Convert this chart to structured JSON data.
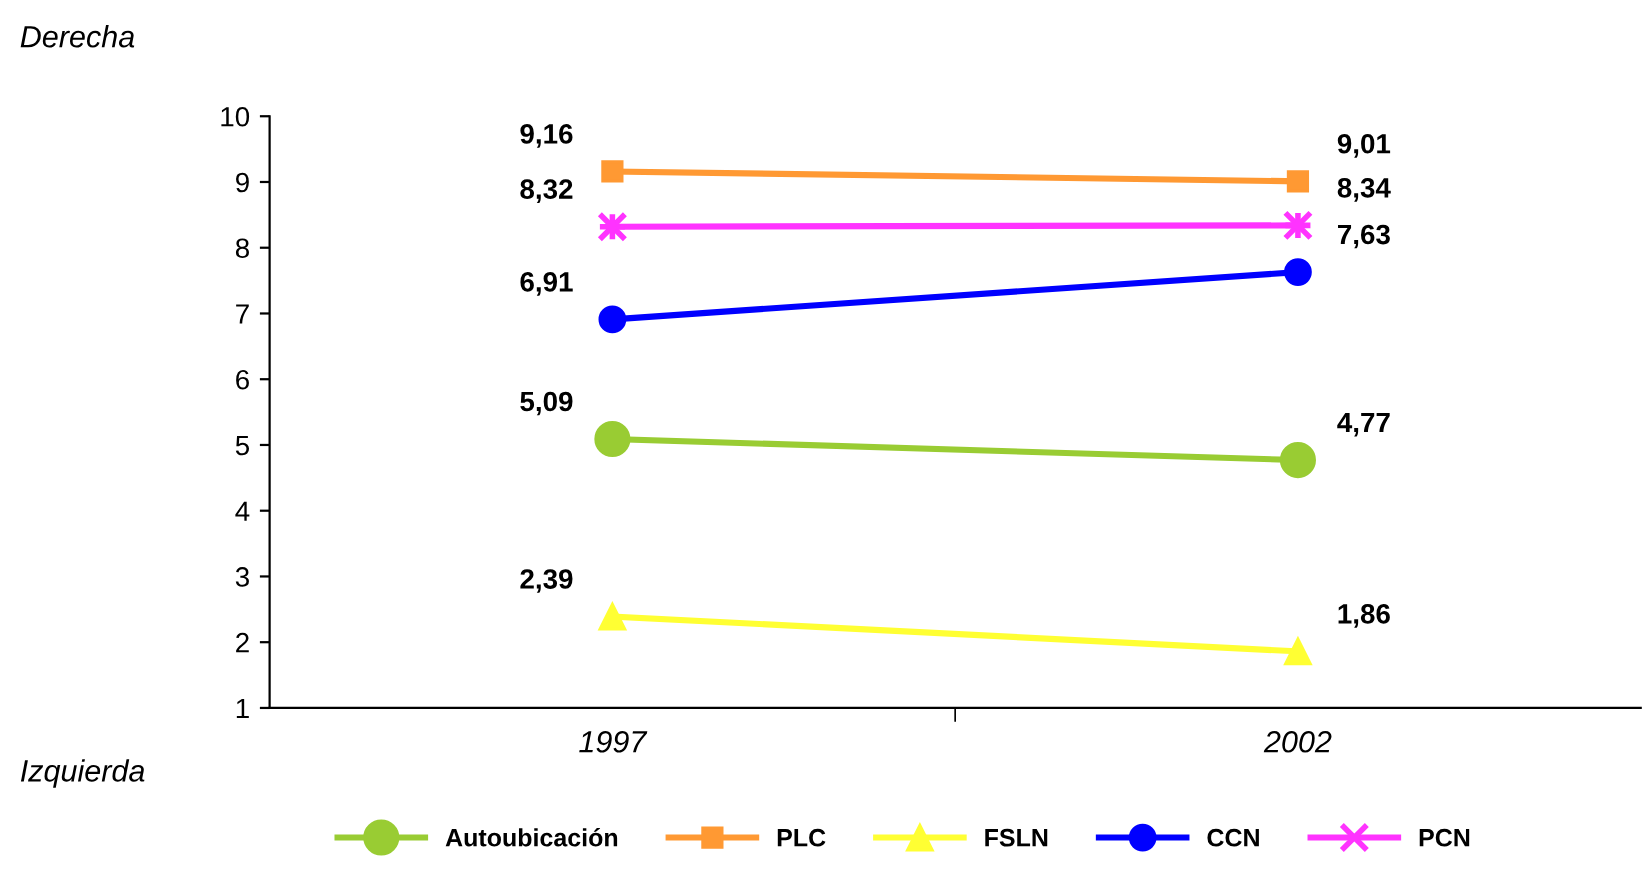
{
  "chart_data": {
    "type": "line",
    "categories": [
      "1997",
      "2002"
    ],
    "ylim": [
      1,
      10
    ],
    "yticks": [
      1,
      2,
      3,
      4,
      5,
      6,
      7,
      8,
      9,
      10
    ],
    "grid": false,
    "legend": "bottom",
    "annotations": [
      "Derecha",
      "Izquierda"
    ],
    "series": [
      {
        "name": "Autoubicación",
        "color": "#99cc33",
        "marker": "circle",
        "values": [
          5.09,
          4.77
        ],
        "value_labels": [
          "5,09",
          "4,77"
        ]
      },
      {
        "name": "PLC",
        "color": "#ff9933",
        "marker": "square",
        "values": [
          9.16,
          9.01
        ],
        "value_labels": [
          "9,16",
          "9,01"
        ]
      },
      {
        "name": "FSLN",
        "color": "#ffff33",
        "marker": "triangle",
        "values": [
          2.39,
          1.86
        ],
        "value_labels": [
          "2,39",
          "1,86"
        ]
      },
      {
        "name": "CCN",
        "color": "#0000ff",
        "marker": "circle",
        "values": [
          6.91,
          7.63
        ],
        "value_labels": [
          "6,91",
          "7,63"
        ]
      },
      {
        "name": "PCN",
        "color": "#ff33ff",
        "marker": "cross",
        "values": [
          8.32,
          8.34
        ],
        "value_labels": [
          "8,32",
          "8,34"
        ]
      }
    ]
  }
}
